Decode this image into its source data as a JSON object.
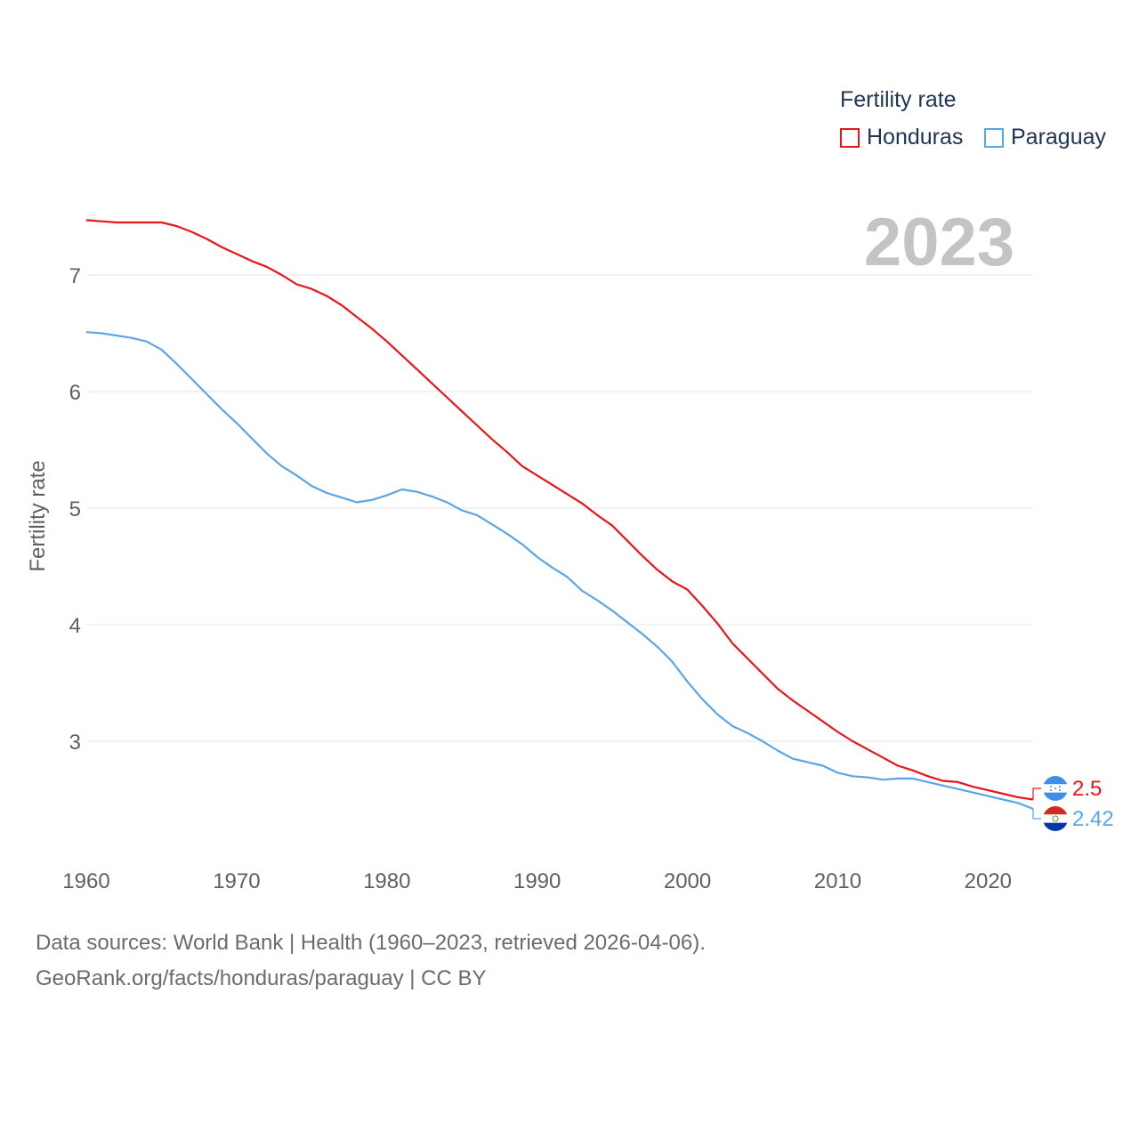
{
  "legend": {
    "title": "Fertility rate",
    "items": [
      {
        "label": "Honduras",
        "color": "#e8151b"
      },
      {
        "label": "Paraguay",
        "color": "#5aa5e8"
      }
    ]
  },
  "year_label": "2023",
  "footer": {
    "line1": "Data sources: World Bank | Health (1960–2023, retrieved 2026-04-06).",
    "line2": "GeoRank.org/facts/honduras/paraguay | CC BY"
  },
  "chart_data": {
    "type": "line",
    "title": "Fertility rate",
    "xlabel": "",
    "ylabel": "Fertility rate",
    "x_ticks": [
      "1960",
      "1970",
      "1980",
      "1990",
      "2000",
      "2010",
      "2020"
    ],
    "y_ticks": [
      "3",
      "4",
      "5",
      "6",
      "7"
    ],
    "xlim": [
      1960,
      2023
    ],
    "ylim": [
      2.0,
      7.6
    ],
    "grid": true,
    "x": [
      1960,
      1961,
      1962,
      1963,
      1964,
      1965,
      1966,
      1967,
      1968,
      1969,
      1970,
      1971,
      1972,
      1973,
      1974,
      1975,
      1976,
      1977,
      1978,
      1979,
      1980,
      1981,
      1982,
      1983,
      1984,
      1985,
      1986,
      1987,
      1988,
      1989,
      1990,
      1991,
      1992,
      1993,
      1994,
      1995,
      1996,
      1997,
      1998,
      1999,
      2000,
      2001,
      2002,
      2003,
      2004,
      2005,
      2006,
      2007,
      2008,
      2009,
      2010,
      2011,
      2012,
      2013,
      2014,
      2015,
      2016,
      2017,
      2018,
      2019,
      2020,
      2021,
      2022,
      2023
    ],
    "series": [
      {
        "name": "Honduras",
        "color": "#e8151b",
        "end_label": "2.5",
        "values": [
          7.47,
          7.46,
          7.45,
          7.45,
          7.45,
          7.45,
          7.42,
          7.37,
          7.31,
          7.24,
          7.18,
          7.12,
          7.07,
          7.0,
          6.92,
          6.88,
          6.82,
          6.74,
          6.64,
          6.54,
          6.43,
          6.31,
          6.19,
          6.07,
          5.95,
          5.83,
          5.71,
          5.59,
          5.48,
          5.36,
          5.28,
          5.2,
          5.12,
          5.04,
          4.94,
          4.85,
          4.72,
          4.59,
          4.47,
          4.37,
          4.3,
          4.16,
          4.01,
          3.84,
          3.71,
          3.58,
          3.45,
          3.35,
          3.26,
          3.17,
          3.08,
          3.0,
          2.93,
          2.86,
          2.79,
          2.75,
          2.7,
          2.66,
          2.65,
          2.61,
          2.58,
          2.55,
          2.52,
          2.5
        ]
      },
      {
        "name": "Paraguay",
        "color": "#5aa5e8",
        "end_label": "2.42",
        "values": [
          6.51,
          6.5,
          6.48,
          6.46,
          6.43,
          6.36,
          6.24,
          6.11,
          5.98,
          5.85,
          5.73,
          5.6,
          5.47,
          5.36,
          5.28,
          5.19,
          5.13,
          5.09,
          5.05,
          5.07,
          5.11,
          5.16,
          5.14,
          5.1,
          5.05,
          4.98,
          4.94,
          4.86,
          4.78,
          4.69,
          4.58,
          4.49,
          4.41,
          4.29,
          4.21,
          4.12,
          4.02,
          3.92,
          3.81,
          3.68,
          3.51,
          3.36,
          3.23,
          3.13,
          3.07,
          3.0,
          2.92,
          2.85,
          2.82,
          2.79,
          2.73,
          2.7,
          2.69,
          2.67,
          2.68,
          2.68,
          2.65,
          2.62,
          2.59,
          2.56,
          2.53,
          2.5,
          2.47,
          2.42
        ]
      }
    ]
  }
}
